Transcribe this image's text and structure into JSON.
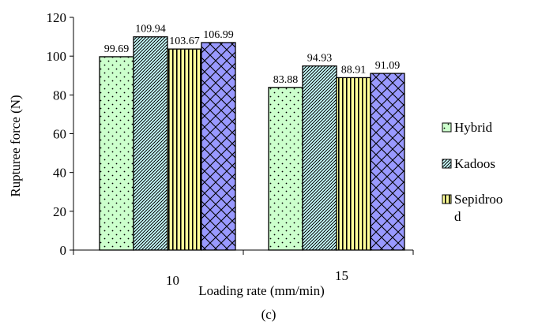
{
  "chart_data": {
    "type": "bar",
    "categories": [
      "10",
      "15"
    ],
    "series": [
      {
        "name": "Hybrid",
        "values": [
          99.69,
          83.88
        ],
        "color": "#ccffcc",
        "pattern": "dots"
      },
      {
        "name": "Kadoos",
        "values": [
          109.94,
          94.93
        ],
        "color": "#ccffff",
        "pattern": "diagonal-stripes"
      },
      {
        "name": "Sepidroo d",
        "values": [
          103.67,
          88.91
        ],
        "color": "#ffff99",
        "pattern": "vertical-stripes"
      },
      {
        "name": "",
        "values": [
          106.99,
          91.09
        ],
        "color": "#9999ff",
        "pattern": "diagonal-brick"
      }
    ],
    "data_labels": [
      [
        "99.69",
        "83.88"
      ],
      [
        "109.94",
        "94.93"
      ],
      [
        "103.67",
        "88.91"
      ],
      [
        "106.99",
        "91.09"
      ]
    ],
    "legend_labels": [
      "Hybrid",
      "Kadoos",
      "Sepidroo",
      "d"
    ],
    "title": "",
    "xlabel": "Loading rate (mm/min)",
    "ylabel": "Rupturee force (N)",
    "yticks": [
      "0",
      "20",
      "40",
      "60",
      "80",
      "100",
      "120"
    ],
    "ylim": [
      0,
      120
    ],
    "grid": false,
    "legend_position": "right",
    "caption": "(c)"
  }
}
